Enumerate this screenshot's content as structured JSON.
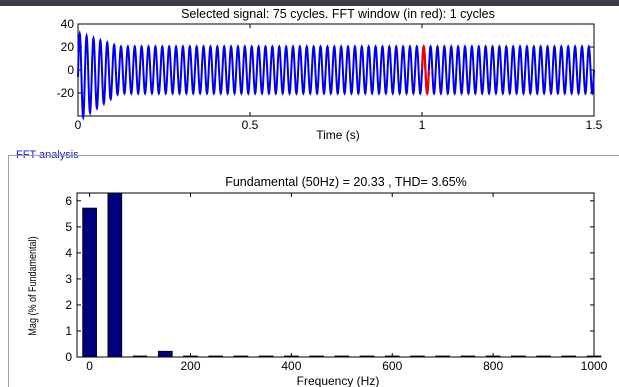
{
  "signal_panel": {
    "title": "Selected signal: 75 cycles. FFT window (in red): 1 cycles",
    "xlabel": "Time (s)",
    "colors": {
      "signal": "#0000ee",
      "window": "#ee0000"
    }
  },
  "fft_panel": {
    "group_label": "FFT analysis",
    "title": "Fundamental (50Hz) = 20.33 , THD= 3.65%",
    "xlabel": "Frequency (Hz)",
    "ylabel": "Mag (% of Fundamental)",
    "colors": {
      "bar": "#00007f"
    }
  },
  "chart_data": [
    {
      "type": "line",
      "title": "Selected signal: 75 cycles. FFT window (in red): 1 cycles",
      "xlabel": "Time (s)",
      "ylabel": "",
      "xlim": [
        0,
        1.5
      ],
      "ylim": [
        -40,
        40
      ],
      "xticks": [
        "0",
        "0.5",
        "1",
        "1.5"
      ],
      "yticks": [
        "40",
        "20",
        "0",
        "-20"
      ],
      "series": [
        {
          "cycles": 75,
          "frequency_hz": 50,
          "steady_amplitude": 20.33,
          "initial_peak": 38,
          "transient_end_s": 0.12
        }
      ],
      "window": {
        "start_s": 1.0,
        "end_s": 1.02
      }
    },
    {
      "type": "bar",
      "title": "Fundamental (50Hz) = 20.33 , THD= 3.65%",
      "xlabel": "Frequency (Hz)",
      "ylabel": "Mag (% of Fundamental)",
      "xlim": [
        -25,
        1000
      ],
      "ylim": [
        0,
        6.3
      ],
      "xticks": [
        "0",
        "200",
        "400",
        "600",
        "800",
        "1000"
      ],
      "yticks": [
        "0",
        "1",
        "2",
        "3",
        "4",
        "5",
        "6"
      ],
      "x": [
        0,
        50,
        100,
        150,
        200,
        250,
        300,
        350,
        400,
        450,
        500,
        550,
        600,
        650,
        700,
        750,
        800,
        850,
        900,
        950,
        1000
      ],
      "values": [
        5.72,
        6.3,
        0.02,
        0.22,
        0.02,
        0.02,
        0.02,
        0.02,
        0.02,
        0.02,
        0.02,
        0.02,
        0.02,
        0.02,
        0.02,
        0.02,
        0.02,
        0.02,
        0.02,
        0.02,
        0.02
      ]
    }
  ]
}
